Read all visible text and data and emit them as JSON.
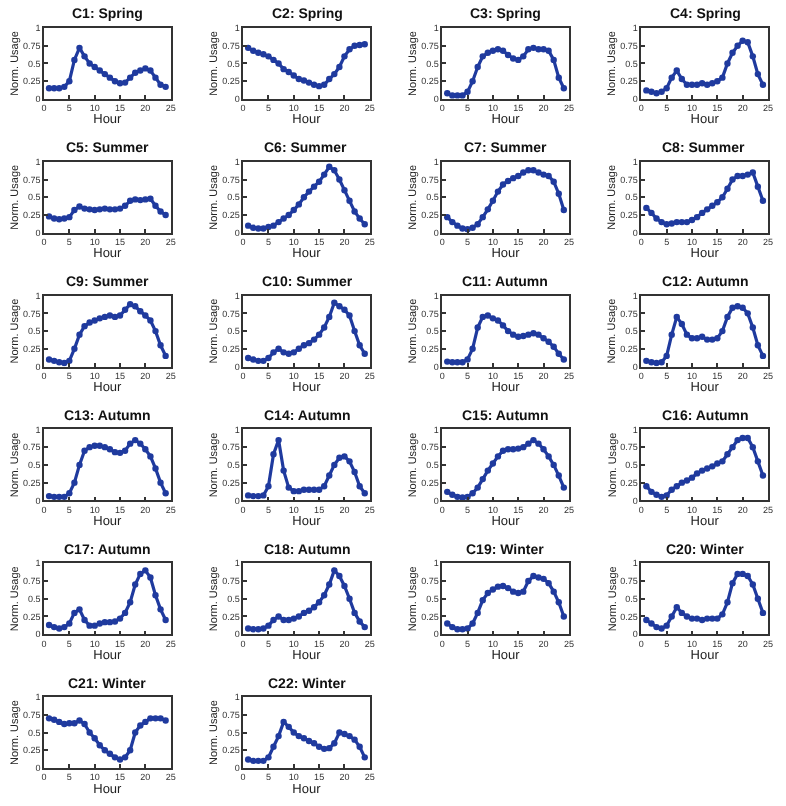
{
  "chart_data": [
    {
      "type": "line",
      "title": "C1: Spring",
      "xlabel": "Hour",
      "ylabel": "Norm. Usage",
      "color": "#1f3a9e",
      "marker": "circle",
      "xlim": [
        0,
        25
      ],
      "xticks": [
        0,
        5,
        10,
        15,
        20,
        25
      ],
      "ylim": [
        0,
        1
      ],
      "yticks": [
        0,
        0.25,
        0.5,
        0.75,
        1
      ],
      "x": [
        1,
        2,
        3,
        4,
        5,
        6,
        7,
        8,
        9,
        10,
        11,
        12,
        13,
        14,
        15,
        16,
        17,
        18,
        19,
        20,
        21,
        22,
        23,
        24
      ],
      "values": [
        0.15,
        0.15,
        0.15,
        0.17,
        0.25,
        0.55,
        0.72,
        0.6,
        0.5,
        0.45,
        0.4,
        0.35,
        0.3,
        0.25,
        0.22,
        0.23,
        0.3,
        0.37,
        0.4,
        0.43,
        0.4,
        0.3,
        0.2,
        0.17
      ]
    },
    {
      "type": "line",
      "title": "C2: Spring",
      "xlabel": "Hour",
      "ylabel": "Norm. Usage",
      "color": "#1f3a9e",
      "marker": "circle",
      "xlim": [
        0,
        25
      ],
      "xticks": [
        0,
        5,
        10,
        15,
        20,
        25
      ],
      "ylim": [
        0,
        1
      ],
      "yticks": [
        0,
        0.25,
        0.5,
        0.75,
        1
      ],
      "x": [
        1,
        2,
        3,
        4,
        5,
        6,
        7,
        8,
        9,
        10,
        11,
        12,
        13,
        14,
        15,
        16,
        17,
        18,
        19,
        20,
        21,
        22,
        23,
        24
      ],
      "values": [
        0.72,
        0.68,
        0.65,
        0.63,
        0.6,
        0.55,
        0.5,
        0.42,
        0.38,
        0.33,
        0.28,
        0.26,
        0.23,
        0.2,
        0.18,
        0.2,
        0.28,
        0.35,
        0.45,
        0.6,
        0.7,
        0.75,
        0.76,
        0.77
      ]
    },
    {
      "type": "line",
      "title": "C3: Spring",
      "xlabel": "Hour",
      "ylabel": "Norm. Usage",
      "color": "#1f3a9e",
      "marker": "circle",
      "xlim": [
        0,
        25
      ],
      "xticks": [
        0,
        5,
        10,
        15,
        20,
        25
      ],
      "ylim": [
        0,
        1
      ],
      "yticks": [
        0,
        0.25,
        0.5,
        0.75,
        1
      ],
      "x": [
        1,
        2,
        3,
        4,
        5,
        6,
        7,
        8,
        9,
        10,
        11,
        12,
        13,
        14,
        15,
        16,
        17,
        18,
        19,
        20,
        21,
        22,
        23,
        24
      ],
      "values": [
        0.08,
        0.05,
        0.05,
        0.05,
        0.1,
        0.25,
        0.45,
        0.6,
        0.65,
        0.68,
        0.7,
        0.68,
        0.62,
        0.57,
        0.55,
        0.6,
        0.7,
        0.72,
        0.7,
        0.7,
        0.68,
        0.55,
        0.3,
        0.15
      ]
    },
    {
      "type": "line",
      "title": "C4: Spring",
      "xlabel": "Hour",
      "ylabel": "Norm. Usage",
      "color": "#1f3a9e",
      "marker": "circle",
      "xlim": [
        0,
        25
      ],
      "xticks": [
        0,
        5,
        10,
        15,
        20,
        25
      ],
      "ylim": [
        0,
        1
      ],
      "yticks": [
        0,
        0.25,
        0.5,
        0.75,
        1
      ],
      "x": [
        1,
        2,
        3,
        4,
        5,
        6,
        7,
        8,
        9,
        10,
        11,
        12,
        13,
        14,
        15,
        16,
        17,
        18,
        19,
        20,
        21,
        22,
        23,
        24
      ],
      "values": [
        0.12,
        0.1,
        0.08,
        0.1,
        0.15,
        0.3,
        0.4,
        0.28,
        0.2,
        0.2,
        0.2,
        0.22,
        0.2,
        0.22,
        0.25,
        0.3,
        0.5,
        0.65,
        0.75,
        0.82,
        0.8,
        0.6,
        0.35,
        0.2
      ]
    },
    {
      "type": "line",
      "title": "C5: Summer",
      "xlabel": "Hour",
      "ylabel": "Norm. Usage",
      "color": "#1f3a9e",
      "marker": "circle",
      "xlim": [
        0,
        25
      ],
      "xticks": [
        0,
        5,
        10,
        15,
        20,
        25
      ],
      "ylim": [
        0,
        1
      ],
      "yticks": [
        0,
        0.25,
        0.5,
        0.75,
        1
      ],
      "x": [
        1,
        2,
        3,
        4,
        5,
        6,
        7,
        8,
        9,
        10,
        11,
        12,
        13,
        14,
        15,
        16,
        17,
        18,
        19,
        20,
        21,
        22,
        23,
        24
      ],
      "values": [
        0.23,
        0.2,
        0.19,
        0.2,
        0.22,
        0.32,
        0.37,
        0.34,
        0.33,
        0.32,
        0.33,
        0.34,
        0.33,
        0.33,
        0.34,
        0.38,
        0.45,
        0.47,
        0.46,
        0.47,
        0.48,
        0.38,
        0.3,
        0.25
      ]
    },
    {
      "type": "line",
      "title": "C6: Summer",
      "xlabel": "Hour",
      "ylabel": "Norm. Usage",
      "color": "#1f3a9e",
      "marker": "circle",
      "xlim": [
        0,
        25
      ],
      "xticks": [
        0,
        5,
        10,
        15,
        20,
        25
      ],
      "ylim": [
        0,
        1
      ],
      "yticks": [
        0,
        0.25,
        0.5,
        0.75,
        1
      ],
      "x": [
        1,
        2,
        3,
        4,
        5,
        6,
        7,
        8,
        9,
        10,
        11,
        12,
        13,
        14,
        15,
        16,
        17,
        18,
        19,
        20,
        21,
        22,
        23,
        24
      ],
      "values": [
        0.1,
        0.07,
        0.06,
        0.06,
        0.08,
        0.1,
        0.15,
        0.2,
        0.25,
        0.32,
        0.4,
        0.5,
        0.58,
        0.65,
        0.72,
        0.82,
        0.93,
        0.88,
        0.75,
        0.6,
        0.45,
        0.3,
        0.2,
        0.12
      ]
    },
    {
      "type": "line",
      "title": "C7: Summer",
      "xlabel": "Hour",
      "ylabel": "Norm. Usage",
      "color": "#1f3a9e",
      "marker": "circle",
      "xlim": [
        0,
        25
      ],
      "xticks": [
        0,
        5,
        10,
        15,
        20,
        25
      ],
      "ylim": [
        0,
        1
      ],
      "yticks": [
        0,
        0.25,
        0.5,
        0.75,
        1
      ],
      "x": [
        1,
        2,
        3,
        4,
        5,
        6,
        7,
        8,
        9,
        10,
        11,
        12,
        13,
        14,
        15,
        16,
        17,
        18,
        19,
        20,
        21,
        22,
        23,
        24
      ],
      "values": [
        0.22,
        0.15,
        0.1,
        0.06,
        0.05,
        0.07,
        0.12,
        0.22,
        0.33,
        0.45,
        0.58,
        0.68,
        0.73,
        0.77,
        0.8,
        0.85,
        0.88,
        0.88,
        0.85,
        0.82,
        0.8,
        0.72,
        0.55,
        0.32
      ]
    },
    {
      "type": "line",
      "title": "C8: Summer",
      "xlabel": "Hour",
      "ylabel": "Norm. Usage",
      "color": "#1f3a9e",
      "marker": "circle",
      "xlim": [
        0,
        25
      ],
      "xticks": [
        0,
        5,
        10,
        15,
        20,
        25
      ],
      "ylim": [
        0,
        1
      ],
      "yticks": [
        0,
        0.25,
        0.5,
        0.75,
        1
      ],
      "x": [
        1,
        2,
        3,
        4,
        5,
        6,
        7,
        8,
        9,
        10,
        11,
        12,
        13,
        14,
        15,
        16,
        17,
        18,
        19,
        20,
        21,
        22,
        23,
        24
      ],
      "values": [
        0.35,
        0.28,
        0.2,
        0.15,
        0.12,
        0.13,
        0.15,
        0.15,
        0.15,
        0.18,
        0.22,
        0.28,
        0.33,
        0.38,
        0.43,
        0.5,
        0.62,
        0.75,
        0.8,
        0.8,
        0.82,
        0.85,
        0.65,
        0.45
      ]
    },
    {
      "type": "line",
      "title": "C9: Summer",
      "xlabel": "Hour",
      "ylabel": "Norm. Usage",
      "color": "#1f3a9e",
      "marker": "circle",
      "xlim": [
        0,
        25
      ],
      "xticks": [
        0,
        5,
        10,
        15,
        20,
        25
      ],
      "ylim": [
        0,
        1
      ],
      "yticks": [
        0,
        0.25,
        0.5,
        0.75,
        1
      ],
      "x": [
        1,
        2,
        3,
        4,
        5,
        6,
        7,
        8,
        9,
        10,
        11,
        12,
        13,
        14,
        15,
        16,
        17,
        18,
        19,
        20,
        21,
        22,
        23,
        24
      ],
      "values": [
        0.1,
        0.08,
        0.06,
        0.05,
        0.08,
        0.25,
        0.45,
        0.57,
        0.62,
        0.65,
        0.68,
        0.7,
        0.72,
        0.7,
        0.72,
        0.8,
        0.88,
        0.85,
        0.78,
        0.72,
        0.65,
        0.5,
        0.3,
        0.15
      ]
    },
    {
      "type": "line",
      "title": "C10: Summer",
      "xlabel": "Hour",
      "ylabel": "Norm. Usage",
      "color": "#1f3a9e",
      "marker": "circle",
      "xlim": [
        0,
        25
      ],
      "xticks": [
        0,
        5,
        10,
        15,
        20,
        25
      ],
      "ylim": [
        0,
        1
      ],
      "yticks": [
        0,
        0.25,
        0.5,
        0.75,
        1
      ],
      "x": [
        1,
        2,
        3,
        4,
        5,
        6,
        7,
        8,
        9,
        10,
        11,
        12,
        13,
        14,
        15,
        16,
        17,
        18,
        19,
        20,
        21,
        22,
        23,
        24
      ],
      "values": [
        0.12,
        0.1,
        0.08,
        0.08,
        0.12,
        0.2,
        0.25,
        0.2,
        0.18,
        0.2,
        0.25,
        0.3,
        0.33,
        0.38,
        0.45,
        0.55,
        0.7,
        0.9,
        0.85,
        0.8,
        0.72,
        0.5,
        0.3,
        0.18
      ]
    },
    {
      "type": "line",
      "title": "C11: Autumn",
      "xlabel": "Hour",
      "ylabel": "Norm. Usage",
      "color": "#1f3a9e",
      "marker": "circle",
      "xlim": [
        0,
        25
      ],
      "xticks": [
        0,
        5,
        10,
        15,
        20,
        25
      ],
      "ylim": [
        0,
        1
      ],
      "yticks": [
        0,
        0.25,
        0.5,
        0.75,
        1
      ],
      "x": [
        1,
        2,
        3,
        4,
        5,
        6,
        7,
        8,
        9,
        10,
        11,
        12,
        13,
        14,
        15,
        16,
        17,
        18,
        19,
        20,
        21,
        22,
        23,
        24
      ],
      "values": [
        0.07,
        0.06,
        0.06,
        0.06,
        0.1,
        0.25,
        0.55,
        0.7,
        0.72,
        0.68,
        0.65,
        0.58,
        0.5,
        0.45,
        0.42,
        0.43,
        0.45,
        0.47,
        0.45,
        0.4,
        0.35,
        0.28,
        0.18,
        0.1
      ]
    },
    {
      "type": "line",
      "title": "C12: Autumn",
      "xlabel": "Hour",
      "ylabel": "Norm. Usage",
      "color": "#1f3a9e",
      "marker": "circle",
      "xlim": [
        0,
        25
      ],
      "xticks": [
        0,
        5,
        10,
        15,
        20,
        25
      ],
      "ylim": [
        0,
        1
      ],
      "yticks": [
        0,
        0.25,
        0.5,
        0.75,
        1
      ],
      "x": [
        1,
        2,
        3,
        4,
        5,
        6,
        7,
        8,
        9,
        10,
        11,
        12,
        13,
        14,
        15,
        16,
        17,
        18,
        19,
        20,
        21,
        22,
        23,
        24
      ],
      "values": [
        0.08,
        0.06,
        0.05,
        0.06,
        0.15,
        0.45,
        0.7,
        0.6,
        0.45,
        0.4,
        0.4,
        0.42,
        0.38,
        0.38,
        0.4,
        0.5,
        0.7,
        0.83,
        0.85,
        0.83,
        0.75,
        0.55,
        0.3,
        0.15
      ]
    },
    {
      "type": "line",
      "title": "C13: Autumn",
      "xlabel": "Hour",
      "ylabel": "Norm. Usage",
      "color": "#1f3a9e",
      "marker": "circle",
      "xlim": [
        0,
        25
      ],
      "xticks": [
        0,
        5,
        10,
        15,
        20,
        25
      ],
      "ylim": [
        0,
        1
      ],
      "yticks": [
        0,
        0.25,
        0.5,
        0.75,
        1
      ],
      "x": [
        1,
        2,
        3,
        4,
        5,
        6,
        7,
        8,
        9,
        10,
        11,
        12,
        13,
        14,
        15,
        16,
        17,
        18,
        19,
        20,
        21,
        22,
        23,
        24
      ],
      "values": [
        0.06,
        0.05,
        0.05,
        0.05,
        0.1,
        0.25,
        0.5,
        0.7,
        0.75,
        0.77,
        0.77,
        0.75,
        0.72,
        0.68,
        0.67,
        0.7,
        0.8,
        0.85,
        0.8,
        0.72,
        0.62,
        0.45,
        0.25,
        0.1
      ]
    },
    {
      "type": "line",
      "title": "C14: Autumn",
      "xlabel": "Hour",
      "ylabel": "Norm. Usage",
      "color": "#1f3a9e",
      "marker": "circle",
      "xlim": [
        0,
        25
      ],
      "xticks": [
        0,
        5,
        10,
        15,
        20,
        25
      ],
      "ylim": [
        0,
        1
      ],
      "yticks": [
        0,
        0.25,
        0.5,
        0.75,
        1
      ],
      "x": [
        1,
        2,
        3,
        4,
        5,
        6,
        7,
        8,
        9,
        10,
        11,
        12,
        13,
        14,
        15,
        16,
        17,
        18,
        19,
        20,
        21,
        22,
        23,
        24
      ],
      "values": [
        0.07,
        0.06,
        0.06,
        0.07,
        0.2,
        0.65,
        0.85,
        0.42,
        0.18,
        0.13,
        0.13,
        0.15,
        0.15,
        0.15,
        0.15,
        0.2,
        0.35,
        0.5,
        0.6,
        0.62,
        0.55,
        0.4,
        0.2,
        0.1
      ]
    },
    {
      "type": "line",
      "title": "C15: Autumn",
      "xlabel": "Hour",
      "ylabel": "Norm. Usage",
      "color": "#1f3a9e",
      "marker": "circle",
      "xlim": [
        0,
        25
      ],
      "xticks": [
        0,
        5,
        10,
        15,
        20,
        25
      ],
      "ylim": [
        0,
        1
      ],
      "yticks": [
        0,
        0.25,
        0.5,
        0.75,
        1
      ],
      "x": [
        1,
        2,
        3,
        4,
        5,
        6,
        7,
        8,
        9,
        10,
        11,
        12,
        13,
        14,
        15,
        16,
        17,
        18,
        19,
        20,
        21,
        22,
        23,
        24
      ],
      "values": [
        0.12,
        0.08,
        0.05,
        0.04,
        0.05,
        0.1,
        0.18,
        0.3,
        0.42,
        0.52,
        0.62,
        0.7,
        0.72,
        0.72,
        0.73,
        0.75,
        0.8,
        0.85,
        0.8,
        0.72,
        0.62,
        0.5,
        0.35,
        0.18
      ]
    },
    {
      "type": "line",
      "title": "C16: Autumn",
      "xlabel": "Hour",
      "ylabel": "Norm. Usage",
      "color": "#1f3a9e",
      "marker": "circle",
      "xlim": [
        0,
        25
      ],
      "xticks": [
        0,
        5,
        10,
        15,
        20,
        25
      ],
      "ylim": [
        0,
        1
      ],
      "yticks": [
        0,
        0.25,
        0.5,
        0.75,
        1
      ],
      "x": [
        1,
        2,
        3,
        4,
        5,
        6,
        7,
        8,
        9,
        10,
        11,
        12,
        13,
        14,
        15,
        16,
        17,
        18,
        19,
        20,
        21,
        22,
        23,
        24
      ],
      "values": [
        0.2,
        0.12,
        0.08,
        0.05,
        0.07,
        0.15,
        0.2,
        0.25,
        0.28,
        0.32,
        0.38,
        0.42,
        0.45,
        0.48,
        0.52,
        0.55,
        0.65,
        0.75,
        0.85,
        0.88,
        0.88,
        0.75,
        0.55,
        0.35
      ]
    },
    {
      "type": "line",
      "title": "C17: Autumn",
      "xlabel": "Hour",
      "ylabel": "Norm. Usage",
      "color": "#1f3a9e",
      "marker": "circle",
      "xlim": [
        0,
        25
      ],
      "xticks": [
        0,
        5,
        10,
        15,
        20,
        25
      ],
      "ylim": [
        0,
        1
      ],
      "yticks": [
        0,
        0.25,
        0.5,
        0.75,
        1
      ],
      "x": [
        1,
        2,
        3,
        4,
        5,
        6,
        7,
        8,
        9,
        10,
        11,
        12,
        13,
        14,
        15,
        16,
        17,
        18,
        19,
        20,
        21,
        22,
        23,
        24
      ],
      "values": [
        0.13,
        0.1,
        0.08,
        0.1,
        0.15,
        0.3,
        0.35,
        0.2,
        0.12,
        0.12,
        0.15,
        0.17,
        0.17,
        0.18,
        0.22,
        0.3,
        0.45,
        0.7,
        0.85,
        0.9,
        0.8,
        0.55,
        0.35,
        0.2
      ]
    },
    {
      "type": "line",
      "title": "C18: Autumn",
      "xlabel": "Hour",
      "ylabel": "Norm. Usage",
      "color": "#1f3a9e",
      "marker": "circle",
      "xlim": [
        0,
        25
      ],
      "xticks": [
        0,
        5,
        10,
        15,
        20,
        25
      ],
      "ylim": [
        0,
        1
      ],
      "yticks": [
        0,
        0.25,
        0.5,
        0.75,
        1
      ],
      "x": [
        1,
        2,
        3,
        4,
        5,
        6,
        7,
        8,
        9,
        10,
        11,
        12,
        13,
        14,
        15,
        16,
        17,
        18,
        19,
        20,
        21,
        22,
        23,
        24
      ],
      "values": [
        0.08,
        0.07,
        0.07,
        0.08,
        0.12,
        0.2,
        0.25,
        0.2,
        0.2,
        0.22,
        0.25,
        0.3,
        0.33,
        0.38,
        0.45,
        0.55,
        0.7,
        0.9,
        0.82,
        0.68,
        0.5,
        0.3,
        0.18,
        0.1
      ]
    },
    {
      "type": "line",
      "title": "C19: Winter",
      "xlabel": "Hour",
      "ylabel": "Norm. Usage",
      "color": "#1f3a9e",
      "marker": "circle",
      "xlim": [
        0,
        25
      ],
      "xticks": [
        0,
        5,
        10,
        15,
        20,
        25
      ],
      "ylim": [
        0,
        1
      ],
      "yticks": [
        0,
        0.25,
        0.5,
        0.75,
        1
      ],
      "x": [
        1,
        2,
        3,
        4,
        5,
        6,
        7,
        8,
        9,
        10,
        11,
        12,
        13,
        14,
        15,
        16,
        17,
        18,
        19,
        20,
        21,
        22,
        23,
        24
      ],
      "values": [
        0.15,
        0.1,
        0.07,
        0.07,
        0.08,
        0.15,
        0.3,
        0.48,
        0.58,
        0.63,
        0.67,
        0.68,
        0.65,
        0.6,
        0.58,
        0.6,
        0.75,
        0.82,
        0.8,
        0.78,
        0.72,
        0.6,
        0.45,
        0.25
      ]
    },
    {
      "type": "line",
      "title": "C20: Winter",
      "xlabel": "Hour",
      "ylabel": "Norm. Usage",
      "color": "#1f3a9e",
      "marker": "circle",
      "xlim": [
        0,
        25
      ],
      "xticks": [
        0,
        5,
        10,
        15,
        20,
        25
      ],
      "ylim": [
        0,
        1
      ],
      "yticks": [
        0,
        0.25,
        0.5,
        0.75,
        1
      ],
      "x": [
        1,
        2,
        3,
        4,
        5,
        6,
        7,
        8,
        9,
        10,
        11,
        12,
        13,
        14,
        15,
        16,
        17,
        18,
        19,
        20,
        21,
        22,
        23,
        24
      ],
      "values": [
        0.2,
        0.15,
        0.1,
        0.08,
        0.12,
        0.25,
        0.38,
        0.3,
        0.25,
        0.22,
        0.22,
        0.2,
        0.22,
        0.22,
        0.22,
        0.28,
        0.45,
        0.72,
        0.85,
        0.85,
        0.82,
        0.7,
        0.5,
        0.3
      ]
    },
    {
      "type": "line",
      "title": "C21: Winter",
      "xlabel": "Hour",
      "ylabel": "Norm. Usage",
      "color": "#1f3a9e",
      "marker": "circle",
      "xlim": [
        0,
        25
      ],
      "xticks": [
        0,
        5,
        10,
        15,
        20,
        25
      ],
      "ylim": [
        0,
        1
      ],
      "yticks": [
        0,
        0.25,
        0.5,
        0.75,
        1
      ],
      "x": [
        1,
        2,
        3,
        4,
        5,
        6,
        7,
        8,
        9,
        10,
        11,
        12,
        13,
        14,
        15,
        16,
        17,
        18,
        19,
        20,
        21,
        22,
        23,
        24
      ],
      "values": [
        0.7,
        0.68,
        0.65,
        0.62,
        0.63,
        0.63,
        0.67,
        0.62,
        0.5,
        0.42,
        0.32,
        0.25,
        0.2,
        0.15,
        0.12,
        0.15,
        0.25,
        0.5,
        0.6,
        0.65,
        0.7,
        0.7,
        0.7,
        0.67
      ]
    },
    {
      "type": "line",
      "title": "C22: Winter",
      "xlabel": "Hour",
      "ylabel": "Norm. Usage",
      "color": "#1f3a9e",
      "marker": "circle",
      "xlim": [
        0,
        25
      ],
      "xticks": [
        0,
        5,
        10,
        15,
        20,
        25
      ],
      "ylim": [
        0,
        1
      ],
      "yticks": [
        0,
        0.25,
        0.5,
        0.75,
        1
      ],
      "x": [
        1,
        2,
        3,
        4,
        5,
        6,
        7,
        8,
        9,
        10,
        11,
        12,
        13,
        14,
        15,
        16,
        17,
        18,
        19,
        20,
        21,
        22,
        23,
        24
      ],
      "values": [
        0.12,
        0.1,
        0.1,
        0.1,
        0.15,
        0.3,
        0.45,
        0.65,
        0.58,
        0.5,
        0.45,
        0.42,
        0.38,
        0.35,
        0.3,
        0.27,
        0.28,
        0.35,
        0.5,
        0.48,
        0.45,
        0.4,
        0.3,
        0.15
      ]
    }
  ]
}
